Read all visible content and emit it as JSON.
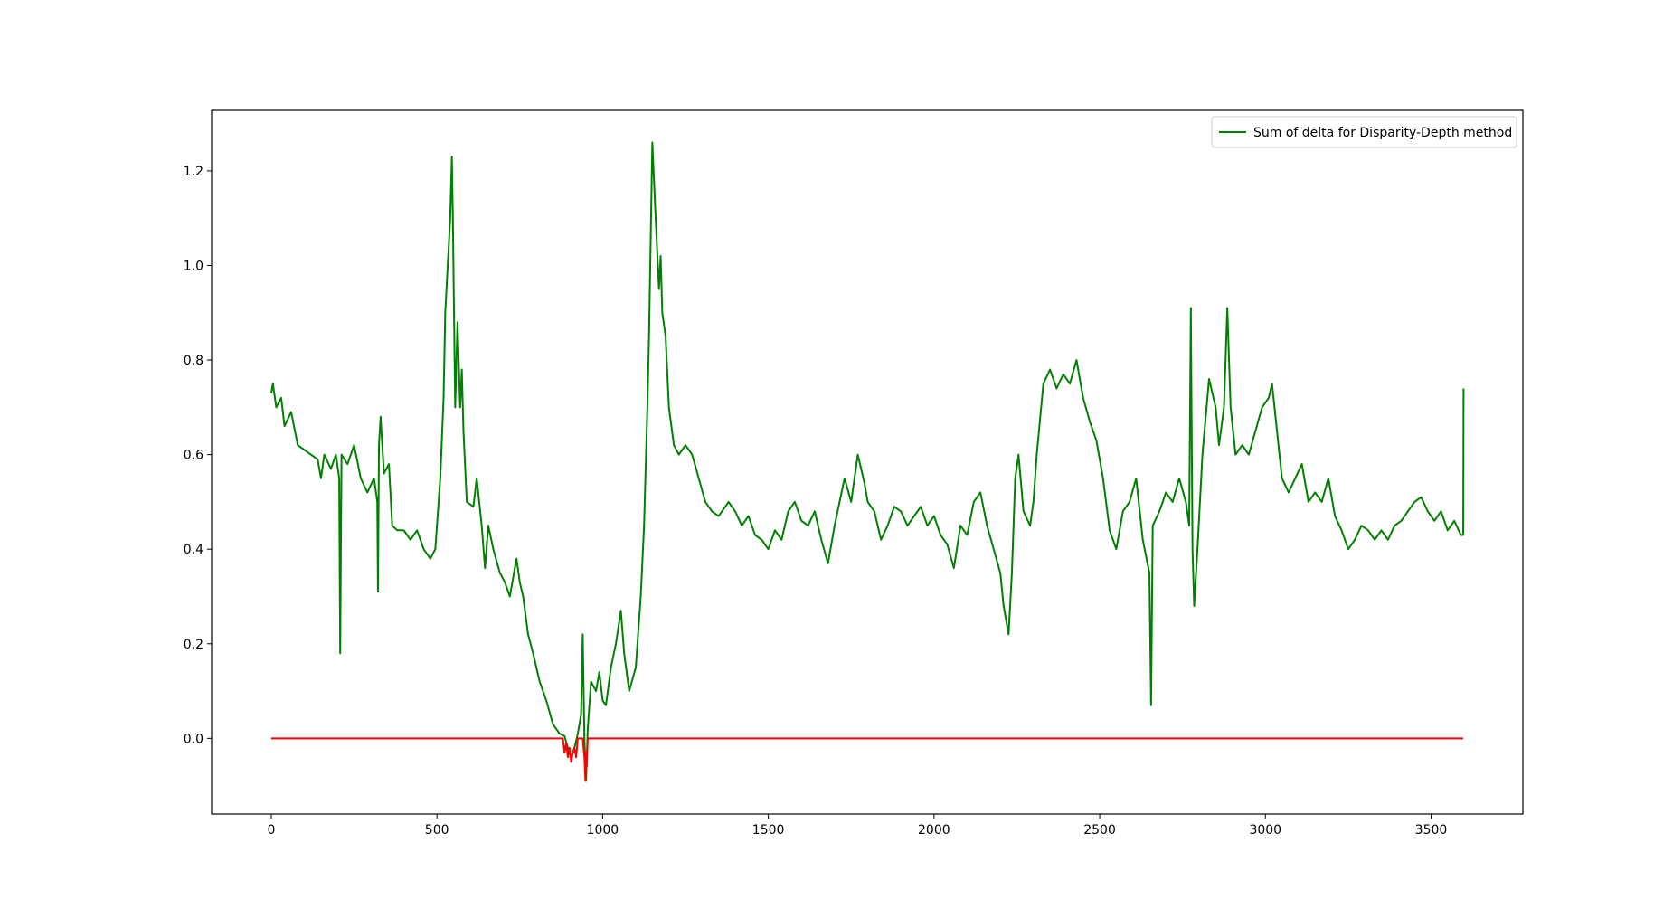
{
  "chart_data": {
    "type": "line",
    "series": [
      {
        "name": "Sum of delta for Disparity-Depth method",
        "color": "#008000",
        "x": [
          0,
          5,
          15,
          30,
          40,
          60,
          80,
          100,
          120,
          140,
          150,
          160,
          180,
          195,
          205,
          208,
          212,
          230,
          250,
          270,
          290,
          310,
          320,
          322,
          325,
          330,
          340,
          355,
          365,
          380,
          400,
          420,
          440,
          460,
          480,
          495,
          510,
          520,
          525,
          540,
          545,
          548,
          555,
          562,
          570,
          575,
          580,
          590,
          610,
          620,
          635,
          645,
          655,
          670,
          690,
          705,
          720,
          740,
          750,
          760,
          775,
          790,
          810,
          830,
          850,
          870,
          885,
          895,
          905,
          915,
          925,
          935,
          940,
          945,
          950,
          955,
          965,
          980,
          990,
          1000,
          1010,
          1025,
          1040,
          1055,
          1065,
          1080,
          1100,
          1115,
          1125,
          1135,
          1140,
          1150,
          1160,
          1170,
          1175,
          1180,
          1190,
          1200,
          1215,
          1230,
          1250,
          1270,
          1290,
          1310,
          1330,
          1350,
          1380,
          1400,
          1420,
          1440,
          1460,
          1480,
          1500,
          1520,
          1540,
          1560,
          1580,
          1600,
          1620,
          1640,
          1660,
          1680,
          1700,
          1730,
          1750,
          1770,
          1790,
          1800,
          1820,
          1840,
          1860,
          1880,
          1900,
          1920,
          1940,
          1960,
          1980,
          2000,
          2020,
          2040,
          2060,
          2080,
          2100,
          2120,
          2140,
          2160,
          2180,
          2200,
          2210,
          2225,
          2235,
          2245,
          2255,
          2270,
          2290,
          2300,
          2310,
          2330,
          2350,
          2370,
          2390,
          2410,
          2430,
          2450,
          2470,
          2490,
          2510,
          2530,
          2550,
          2570,
          2590,
          2610,
          2630,
          2650,
          2655,
          2660,
          2680,
          2700,
          2720,
          2740,
          2760,
          2770,
          2775,
          2780,
          2785,
          2795,
          2810,
          2830,
          2850,
          2860,
          2875,
          2885,
          2895,
          2910,
          2930,
          2950,
          2970,
          2990,
          3010,
          3020,
          3035,
          3050,
          3070,
          3090,
          3110,
          3130,
          3150,
          3170,
          3190,
          3210,
          3230,
          3250,
          3270,
          3290,
          3310,
          3330,
          3350,
          3370,
          3390,
          3410,
          3430,
          3450,
          3470,
          3490,
          3510,
          3530,
          3550,
          3570,
          3590,
          3597,
          3598
        ],
        "values": [
          0.73,
          0.75,
          0.7,
          0.72,
          0.66,
          0.69,
          0.62,
          0.61,
          0.6,
          0.59,
          0.55,
          0.6,
          0.57,
          0.6,
          0.55,
          0.18,
          0.6,
          0.58,
          0.62,
          0.55,
          0.52,
          0.55,
          0.5,
          0.31,
          0.62,
          0.68,
          0.56,
          0.58,
          0.45,
          0.44,
          0.44,
          0.42,
          0.44,
          0.4,
          0.38,
          0.4,
          0.55,
          0.72,
          0.9,
          1.1,
          1.23,
          1.1,
          0.7,
          0.88,
          0.7,
          0.78,
          0.65,
          0.5,
          0.49,
          0.55,
          0.45,
          0.36,
          0.45,
          0.4,
          0.35,
          0.33,
          0.3,
          0.38,
          0.33,
          0.3,
          0.22,
          0.18,
          0.12,
          0.08,
          0.03,
          0.01,
          0.005,
          -0.02,
          -0.04,
          -0.02,
          0.01,
          0.05,
          0.22,
          0.0,
          -0.09,
          0.02,
          0.12,
          0.1,
          0.14,
          0.08,
          0.07,
          0.15,
          0.2,
          0.27,
          0.18,
          0.1,
          0.15,
          0.3,
          0.45,
          0.7,
          0.85,
          1.26,
          1.1,
          0.95,
          1.02,
          0.9,
          0.85,
          0.7,
          0.62,
          0.6,
          0.62,
          0.6,
          0.55,
          0.5,
          0.48,
          0.47,
          0.5,
          0.48,
          0.45,
          0.47,
          0.43,
          0.42,
          0.4,
          0.44,
          0.42,
          0.48,
          0.5,
          0.46,
          0.45,
          0.48,
          0.42,
          0.37,
          0.45,
          0.55,
          0.5,
          0.6,
          0.54,
          0.5,
          0.48,
          0.42,
          0.45,
          0.49,
          0.48,
          0.45,
          0.47,
          0.49,
          0.45,
          0.47,
          0.43,
          0.41,
          0.36,
          0.45,
          0.43,
          0.5,
          0.52,
          0.45,
          0.4,
          0.35,
          0.28,
          0.22,
          0.35,
          0.55,
          0.6,
          0.48,
          0.45,
          0.5,
          0.6,
          0.75,
          0.78,
          0.74,
          0.77,
          0.75,
          0.8,
          0.72,
          0.67,
          0.63,
          0.55,
          0.44,
          0.4,
          0.48,
          0.5,
          0.55,
          0.42,
          0.35,
          0.07,
          0.45,
          0.48,
          0.52,
          0.5,
          0.55,
          0.5,
          0.45,
          0.91,
          0.4,
          0.28,
          0.4,
          0.6,
          0.76,
          0.7,
          0.62,
          0.7,
          0.91,
          0.7,
          0.6,
          0.62,
          0.6,
          0.65,
          0.7,
          0.72,
          0.75,
          0.65,
          0.55,
          0.52,
          0.55,
          0.58,
          0.5,
          0.52,
          0.5,
          0.55,
          0.47,
          0.44,
          0.4,
          0.42,
          0.45,
          0.44,
          0.42,
          0.44,
          0.42,
          0.45,
          0.46,
          0.48,
          0.5,
          0.51,
          0.48,
          0.46,
          0.48,
          0.44,
          0.46,
          0.43,
          0.43,
          0.74
        ]
      },
      {
        "color": "#ff0000",
        "x": [
          0,
          880,
          885,
          890,
          895,
          900,
          905,
          910,
          915,
          920,
          925,
          940,
          945,
          948,
          950,
          952,
          955,
          3597
        ],
        "values": [
          0,
          0,
          -0.03,
          -0.01,
          -0.04,
          -0.02,
          -0.05,
          -0.03,
          -0.02,
          -0.04,
          0,
          0,
          -0.04,
          -0.09,
          -0.03,
          -0.06,
          0,
          0
        ]
      }
    ],
    "xlim": [
      -180,
      3777
    ],
    "xticks": [
      0,
      500,
      1000,
      1500,
      2000,
      2500,
      3000,
      3500
    ],
    "ylim": [
      -0.16,
      1.328
    ],
    "yticks": [
      {
        "value": 0,
        "label": "0.0"
      },
      0.2,
      0.4,
      0.6,
      0.8,
      {
        "value": 1,
        "label": "1.0"
      },
      1.2
    ],
    "legend": "upper right"
  }
}
